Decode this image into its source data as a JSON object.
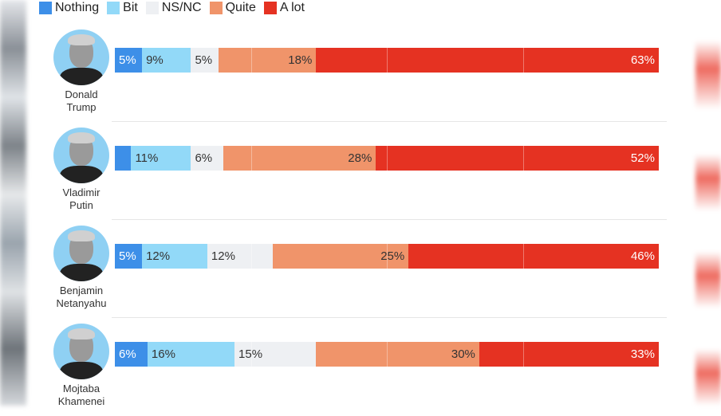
{
  "chart_data": {
    "type": "bar",
    "orientation": "horizontal-stacked-100",
    "title": "",
    "xlabel": "",
    "ylabel": "",
    "xlim": [
      0,
      100
    ],
    "grid": true,
    "legend_position": "top-left",
    "legend": [
      {
        "key": "nothing",
        "label": "Nothing",
        "color": "#3d8fe8"
      },
      {
        "key": "bit",
        "label": "Bit",
        "color": "#92d9f8"
      },
      {
        "key": "nsnc",
        "label": "NS/NC",
        "color": "#eef0f3"
      },
      {
        "key": "quite",
        "label": "Quite",
        "color": "#f0946a"
      },
      {
        "key": "alot",
        "label": "A lot",
        "color": "#e53222"
      }
    ],
    "categories": [
      "Donald Trump",
      "Vladimir Putin",
      "Benjamin Netanyahu",
      "Mojtaba Khamenei"
    ],
    "name_lines": [
      [
        "Donald",
        "Trump"
      ],
      [
        "Vladimir",
        "Putin"
      ],
      [
        "Benjamin",
        "Netanyahu"
      ],
      [
        "Mojtaba",
        "Khamenei"
      ]
    ],
    "series": [
      {
        "name": "Nothing",
        "values": [
          5,
          3,
          5,
          6
        ],
        "labels": [
          "5%",
          "",
          "5%",
          "6%"
        ]
      },
      {
        "name": "Bit",
        "values": [
          9,
          11,
          12,
          16
        ],
        "labels": [
          "9%",
          "11%",
          "12%",
          "16%"
        ]
      },
      {
        "name": "NS/NC",
        "values": [
          5,
          6,
          12,
          15
        ],
        "labels": [
          "5%",
          "6%",
          "12%",
          "15%"
        ]
      },
      {
        "name": "Quite",
        "values": [
          18,
          28,
          25,
          30
        ],
        "labels": [
          "18%",
          "28%",
          "25%",
          "30%"
        ]
      },
      {
        "name": "A lot",
        "values": [
          63,
          52,
          46,
          33
        ],
        "labels": [
          "63%",
          "52%",
          "46%",
          "33%"
        ]
      }
    ]
  }
}
